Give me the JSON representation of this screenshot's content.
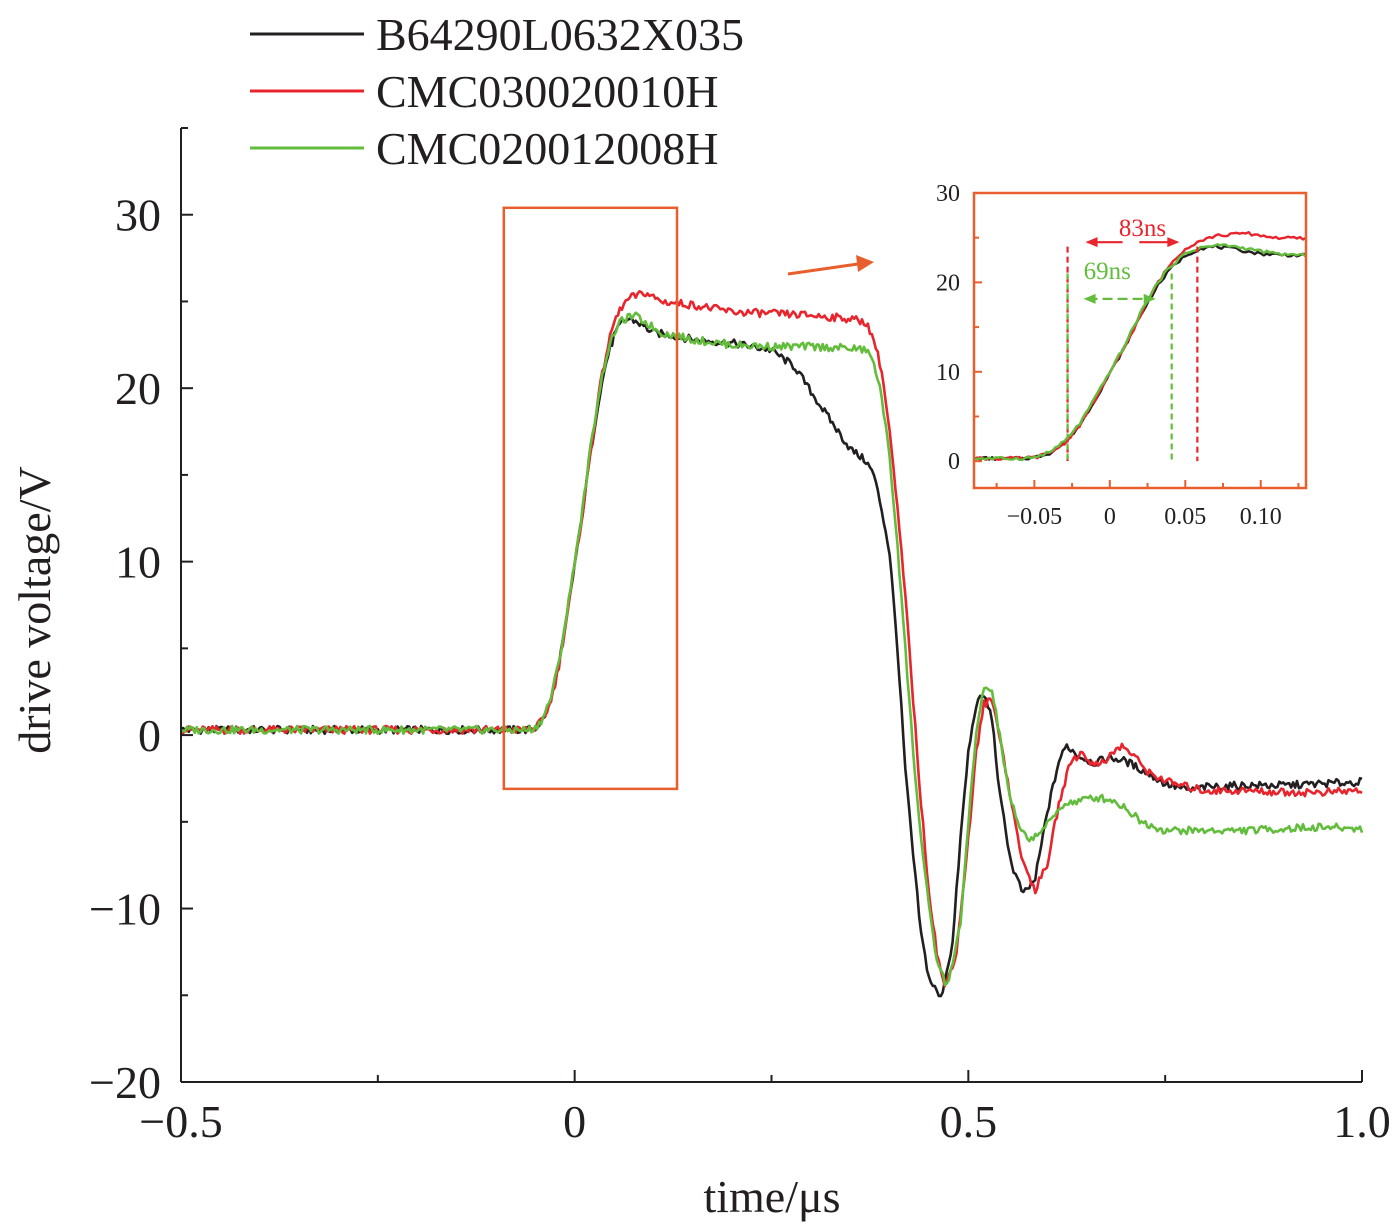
{
  "colors": {
    "black": "#231f20",
    "red": "#e8242c",
    "green": "#63bd3c",
    "highlight": "#e85f2d"
  },
  "chart_data": [
    {
      "type": "line",
      "xlabel": "time/μs",
      "ylabel": "drive voltage/V",
      "xlim": [
        -0.5,
        1.0
      ],
      "ylim": [
        -20,
        35
      ],
      "xticks": [
        {
          "value": -0.5,
          "label": "−0.5"
        },
        {
          "value": 0,
          "label": "0"
        },
        {
          "value": 0.5,
          "label": "0.5"
        },
        {
          "value": 1.0,
          "label": "1.0"
        }
      ],
      "yticks": [
        {
          "value": -20,
          "label": "−20"
        },
        {
          "value": -10,
          "label": "−10"
        },
        {
          "value": 0,
          "label": "0"
        },
        {
          "value": 10,
          "label": "10"
        },
        {
          "value": 20,
          "label": "20"
        },
        {
          "value": 30,
          "label": "30"
        }
      ],
      "legend_position": "top-left",
      "zoom_region": {
        "x": [
          -0.09,
          0.13
        ],
        "y": [
          -3.1,
          30.4
        ]
      },
      "series": [
        {
          "name": "B64290L0632X035",
          "color": "#231f20",
          "points": [
            [
              -0.5,
              0.3
            ],
            [
              -0.3,
              0.3
            ],
            [
              -0.1,
              0.3
            ],
            [
              -0.06,
              0.3
            ],
            [
              -0.05,
              0.4
            ],
            [
              -0.04,
              0.9
            ],
            [
              -0.03,
              2.0
            ],
            [
              -0.02,
              4.0
            ],
            [
              -0.01,
              6.8
            ],
            [
              0.0,
              9.8
            ],
            [
              0.01,
              12.8
            ],
            [
              0.02,
              16.2
            ],
            [
              0.03,
              19.2
            ],
            [
              0.04,
              21.5
            ],
            [
              0.05,
              23.0
            ],
            [
              0.06,
              23.8
            ],
            [
              0.07,
              24.0
            ],
            [
              0.08,
              23.8
            ],
            [
              0.1,
              23.2
            ],
            [
              0.13,
              23.0
            ],
            [
              0.15,
              22.8
            ],
            [
              0.2,
              22.6
            ],
            [
              0.25,
              22.2
            ],
            [
              0.28,
              21.2
            ],
            [
              0.3,
              19.8
            ],
            [
              0.33,
              17.8
            ],
            [
              0.35,
              16.5
            ],
            [
              0.37,
              15.8
            ],
            [
              0.38,
              15.0
            ],
            [
              0.39,
              13.0
            ],
            [
              0.4,
              10.5
            ],
            [
              0.41,
              5.0
            ],
            [
              0.42,
              -2.0
            ],
            [
              0.43,
              -7.0
            ],
            [
              0.44,
              -11.5
            ],
            [
              0.45,
              -14.0
            ],
            [
              0.465,
              -15.2
            ],
            [
              0.48,
              -12.0
            ],
            [
              0.49,
              -6.0
            ],
            [
              0.5,
              -1.0
            ],
            [
              0.51,
              1.8
            ],
            [
              0.52,
              2.3
            ],
            [
              0.53,
              1.0
            ],
            [
              0.54,
              -3.5
            ],
            [
              0.555,
              -7.5
            ],
            [
              0.57,
              -9.2
            ],
            [
              0.585,
              -8.3
            ],
            [
              0.6,
              -4.5
            ],
            [
              0.615,
              -1.5
            ],
            [
              0.625,
              -0.6
            ],
            [
              0.64,
              -1.2
            ],
            [
              0.66,
              -1.6
            ],
            [
              0.68,
              -1.3
            ],
            [
              0.7,
              -1.5
            ],
            [
              0.72,
              -2.0
            ],
            [
              0.75,
              -2.8
            ],
            [
              0.78,
              -3.2
            ],
            [
              0.8,
              -3.0
            ],
            [
              0.85,
              -2.9
            ],
            [
              0.9,
              -2.9
            ],
            [
              0.95,
              -2.8
            ],
            [
              1.0,
              -2.7
            ]
          ]
        },
        {
          "name": "CMC030020010H",
          "color": "#e8242c",
          "points": [
            [
              -0.5,
              0.3
            ],
            [
              -0.3,
              0.3
            ],
            [
              -0.1,
              0.3
            ],
            [
              -0.06,
              0.3
            ],
            [
              -0.05,
              0.4
            ],
            [
              -0.04,
              0.9
            ],
            [
              -0.03,
              2.0
            ],
            [
              -0.02,
              4.0
            ],
            [
              -0.01,
              6.8
            ],
            [
              0.0,
              9.8
            ],
            [
              0.01,
              12.8
            ],
            [
              0.02,
              16.2
            ],
            [
              0.03,
              19.5
            ],
            [
              0.04,
              22.0
            ],
            [
              0.05,
              23.8
            ],
            [
              0.06,
              24.7
            ],
            [
              0.07,
              25.2
            ],
            [
              0.09,
              25.5
            ],
            [
              0.11,
              25.0
            ],
            [
              0.15,
              24.8
            ],
            [
              0.2,
              24.4
            ],
            [
              0.25,
              24.3
            ],
            [
              0.3,
              24.2
            ],
            [
              0.35,
              24.0
            ],
            [
              0.37,
              23.8
            ],
            [
              0.38,
              22.8
            ],
            [
              0.39,
              21.0
            ],
            [
              0.4,
              17.5
            ],
            [
              0.41,
              13.0
            ],
            [
              0.42,
              8.0
            ],
            [
              0.43,
              2.0
            ],
            [
              0.44,
              -4.0
            ],
            [
              0.45,
              -9.0
            ],
            [
              0.46,
              -12.5
            ],
            [
              0.47,
              -14.6
            ],
            [
              0.485,
              -12.5
            ],
            [
              0.5,
              -6.0
            ],
            [
              0.51,
              -1.0
            ],
            [
              0.52,
              1.8
            ],
            [
              0.53,
              2.0
            ],
            [
              0.54,
              0.0
            ],
            [
              0.555,
              -4.0
            ],
            [
              0.57,
              -7.5
            ],
            [
              0.585,
              -8.9
            ],
            [
              0.6,
              -7.5
            ],
            [
              0.615,
              -4.0
            ],
            [
              0.63,
              -1.5
            ],
            [
              0.645,
              -1.0
            ],
            [
              0.66,
              -1.8
            ],
            [
              0.68,
              -1.2
            ],
            [
              0.695,
              -0.6
            ],
            [
              0.71,
              -1.2
            ],
            [
              0.73,
              -2.2
            ],
            [
              0.76,
              -2.8
            ],
            [
              0.8,
              -3.2
            ],
            [
              0.85,
              -3.2
            ],
            [
              0.9,
              -3.3
            ],
            [
              0.95,
              -3.3
            ],
            [
              1.0,
              -3.2
            ]
          ]
        },
        {
          "name": "CMC020012008H",
          "color": "#63bd3c",
          "points": [
            [
              -0.5,
              0.3
            ],
            [
              -0.3,
              0.3
            ],
            [
              -0.1,
              0.3
            ],
            [
              -0.06,
              0.3
            ],
            [
              -0.05,
              0.4
            ],
            [
              -0.04,
              1.0
            ],
            [
              -0.03,
              2.2
            ],
            [
              -0.02,
              4.2
            ],
            [
              -0.01,
              7.0
            ],
            [
              0.0,
              10.0
            ],
            [
              0.01,
              13.0
            ],
            [
              0.02,
              16.5
            ],
            [
              0.03,
              19.5
            ],
            [
              0.04,
              21.8
            ],
            [
              0.05,
              23.2
            ],
            [
              0.06,
              23.9
            ],
            [
              0.075,
              24.2
            ],
            [
              0.09,
              23.8
            ],
            [
              0.11,
              23.2
            ],
            [
              0.15,
              22.8
            ],
            [
              0.2,
              22.5
            ],
            [
              0.25,
              22.4
            ],
            [
              0.3,
              22.4
            ],
            [
              0.35,
              22.3
            ],
            [
              0.37,
              22.2
            ],
            [
              0.38,
              21.5
            ],
            [
              0.39,
              19.5
            ],
            [
              0.4,
              16.0
            ],
            [
              0.41,
              11.0
            ],
            [
              0.42,
              5.0
            ],
            [
              0.43,
              -1.0
            ],
            [
              0.44,
              -6.0
            ],
            [
              0.45,
              -10.0
            ],
            [
              0.46,
              -13.0
            ],
            [
              0.473,
              -14.5
            ],
            [
              0.49,
              -11.0
            ],
            [
              0.5,
              -5.0
            ],
            [
              0.51,
              0.0
            ],
            [
              0.52,
              2.8
            ],
            [
              0.53,
              2.5
            ],
            [
              0.54,
              0.0
            ],
            [
              0.55,
              -3.0
            ],
            [
              0.565,
              -5.5
            ],
            [
              0.58,
              -6.0
            ],
            [
              0.6,
              -5.2
            ],
            [
              0.62,
              -4.0
            ],
            [
              0.64,
              -3.8
            ],
            [
              0.66,
              -3.6
            ],
            [
              0.68,
              -3.7
            ],
            [
              0.7,
              -4.2
            ],
            [
              0.72,
              -5.0
            ],
            [
              0.75,
              -5.5
            ],
            [
              0.8,
              -5.5
            ],
            [
              0.85,
              -5.5
            ],
            [
              0.9,
              -5.4
            ],
            [
              0.95,
              -5.3
            ],
            [
              1.0,
              -5.4
            ]
          ]
        }
      ]
    },
    {
      "type": "line",
      "inset": true,
      "xlim": [
        -0.09,
        0.13
      ],
      "ylim": [
        -3,
        30
      ],
      "xticks": [
        {
          "value": -0.05,
          "label": "−0.05"
        },
        {
          "value": 0,
          "label": "0"
        },
        {
          "value": 0.05,
          "label": "0.05"
        },
        {
          "value": 0.1,
          "label": "0.10"
        }
      ],
      "yticks": [
        {
          "value": 0,
          "label": "0"
        },
        {
          "value": 10,
          "label": "10"
        },
        {
          "value": 20,
          "label": "20"
        },
        {
          "value": 30,
          "label": "30"
        }
      ],
      "annotations": [
        {
          "label": "83ns",
          "color": "#e8242c",
          "x_start": -0.028,
          "x_end": 0.058,
          "arrow_y": 24.5,
          "text_y": 24.5
        },
        {
          "label": "69ns",
          "color": "#63bd3c",
          "x_start": -0.028,
          "x_end": 0.041,
          "arrow_y": 19.5,
          "text_y": 20.5
        }
      ]
    }
  ]
}
